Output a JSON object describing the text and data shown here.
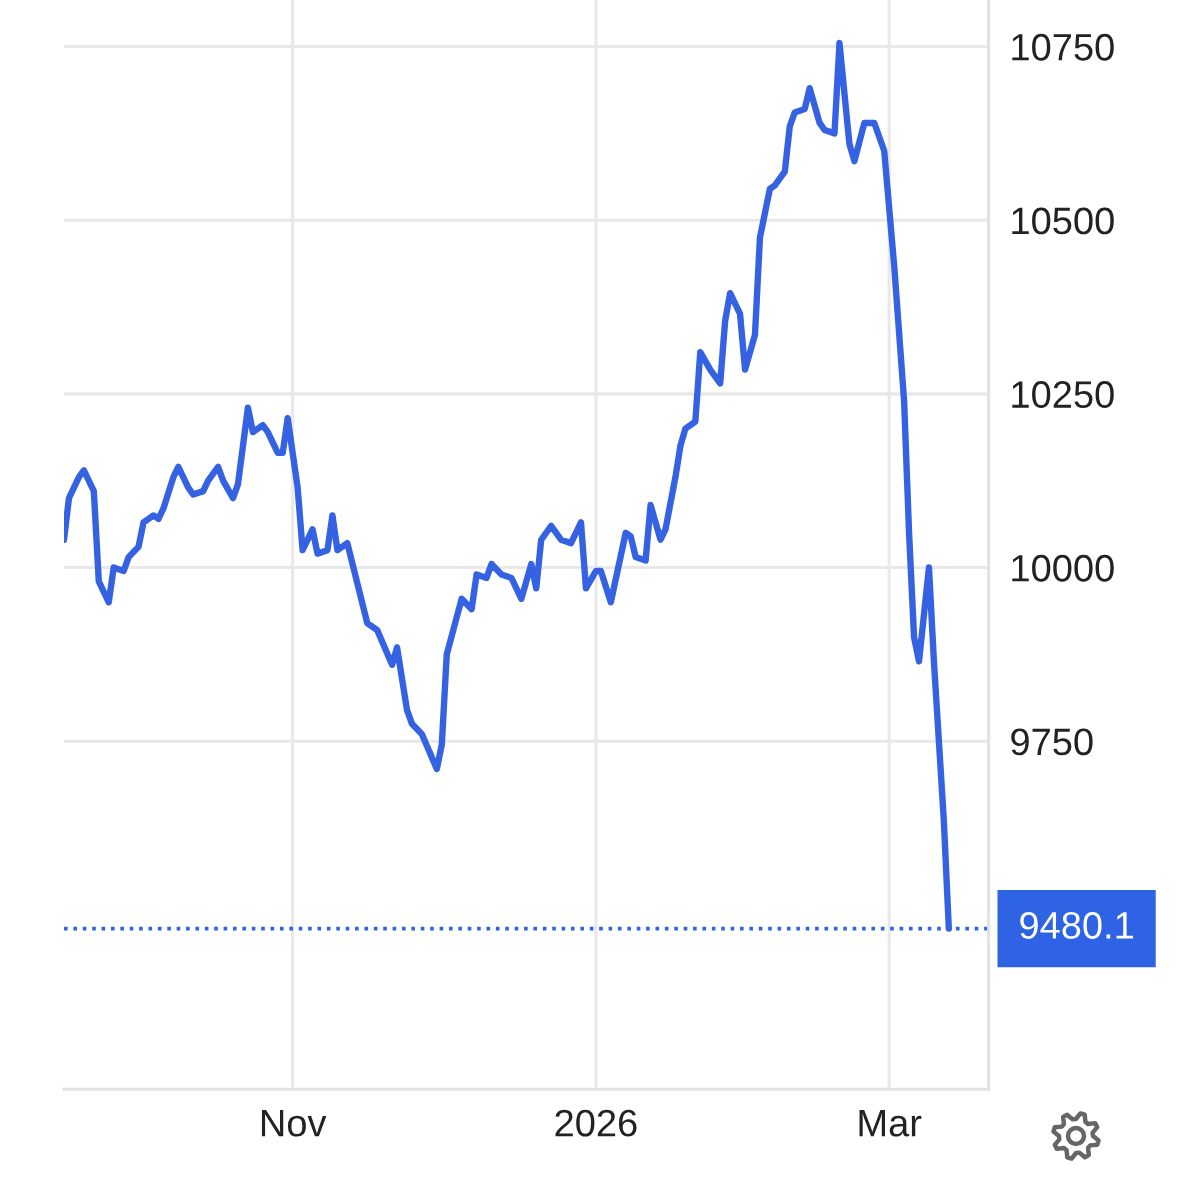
{
  "chart_data": {
    "type": "line",
    "x": [
      "2025-09-16",
      "2025-09-17",
      "2025-09-19",
      "2025-09-20",
      "2025-09-22",
      "2025-09-23",
      "2025-09-25",
      "2025-09-26",
      "2025-09-28",
      "2025-09-29",
      "2025-10-01",
      "2025-10-02",
      "2025-10-04",
      "2025-10-05",
      "2025-10-06",
      "2025-10-08",
      "2025-10-09",
      "2025-10-11",
      "2025-10-12",
      "2025-10-14",
      "2025-10-15",
      "2025-10-17",
      "2025-10-18",
      "2025-10-20",
      "2025-10-21",
      "2025-10-23",
      "2025-10-24",
      "2025-10-26",
      "2025-10-27",
      "2025-10-29",
      "2025-10-30",
      "2025-10-31",
      "2025-11-02",
      "2025-11-03",
      "2025-11-05",
      "2025-11-06",
      "2025-11-08",
      "2025-11-09",
      "2025-11-10",
      "2025-11-12",
      "2025-11-16",
      "2025-11-18",
      "2025-11-21",
      "2025-11-22",
      "2025-11-24",
      "2025-11-25",
      "2025-11-27",
      "2025-11-30",
      "2025-12-01",
      "2025-12-02",
      "2025-12-05",
      "2025-12-07",
      "2025-12-08",
      "2025-12-10",
      "2025-12-11",
      "2025-12-13",
      "2025-12-15",
      "2025-12-17",
      "2025-12-19",
      "2025-12-20",
      "2025-12-21",
      "2025-12-23",
      "2025-12-25",
      "2025-12-27",
      "2025-12-29",
      "2025-12-30",
      "2026-01-01",
      "2026-01-02",
      "2026-01-04",
      "2026-01-07",
      "2026-01-08",
      "2026-01-09",
      "2026-01-11",
      "2026-01-12",
      "2026-01-14",
      "2026-01-15",
      "2026-01-17",
      "2026-01-18",
      "2026-01-19",
      "2026-01-21",
      "2026-01-22",
      "2026-01-24",
      "2026-01-26",
      "2026-01-27",
      "2026-01-28",
      "2026-01-30",
      "2026-01-31",
      "2026-02-02",
      "2026-02-03",
      "2026-02-05",
      "2026-02-06",
      "2026-02-08",
      "2026-02-09",
      "2026-02-10",
      "2026-02-12",
      "2026-02-13",
      "2026-02-15",
      "2026-02-16",
      "2026-02-18",
      "2026-02-19",
      "2026-02-21",
      "2026-02-22",
      "2026-02-24",
      "2026-02-25",
      "2026-02-26",
      "2026-02-28",
      "2026-03-02",
      "2026-03-04",
      "2026-03-05",
      "2026-03-06",
      "2026-03-07",
      "2026-03-09",
      "2026-03-10",
      "2026-03-12",
      "2026-03-13"
    ],
    "series": [
      {
        "color": "#3462e2",
        "values": [
          10040,
          10100,
          10130,
          10140,
          10110,
          9980,
          9950,
          10000,
          9995,
          10015,
          10030,
          10065,
          10075,
          10070,
          10085,
          10130,
          10145,
          10115,
          10105,
          10110,
          10125,
          10145,
          10125,
          10100,
          10120,
          10230,
          10195,
          10205,
          10195,
          10165,
          10165,
          10215,
          10115,
          10025,
          10055,
          10020,
          10025,
          10075,
          10025,
          10035,
          9920,
          9910,
          9860,
          9885,
          9795,
          9775,
          9760,
          9710,
          9745,
          9875,
          9955,
          9940,
          9990,
          9985,
          10005,
          9990,
          9985,
          9955,
          10005,
          9970,
          10040,
          10060,
          10040,
          10035,
          10065,
          9970,
          9995,
          9995,
          9950,
          10050,
          10045,
          10015,
          10010,
          10090,
          10040,
          10055,
          10130,
          10175,
          10200,
          10210,
          10310,
          10285,
          10265,
          10355,
          10395,
          10365,
          10285,
          10335,
          10475,
          10545,
          10550,
          10570,
          10635,
          10655,
          10660,
          10690,
          10640,
          10630,
          10625,
          10755,
          10610,
          10585,
          10640,
          10640,
          10640,
          10600,
          10435,
          10240,
          10050,
          9900,
          9865,
          10000,
          9865,
          9635,
          9480.1
        ]
      }
    ],
    "xlim": [
      "2025-09-16",
      "2026-03-21"
    ],
    "xticks": [
      {
        "value": "2025-11-01",
        "label": "Nov"
      },
      {
        "value": "2026-01-01",
        "label": "2026"
      },
      {
        "value": "2026-03-01",
        "label": "Mar"
      }
    ],
    "ylim": [
      9249,
      10817
    ],
    "yticks": [
      9750,
      10000,
      10250,
      10500,
      10750
    ],
    "grid": true,
    "line_style": "solid",
    "ref_lines": [
      {
        "axis": "y",
        "value": 9480.1,
        "label": "9480.1",
        "color": "#2f63e6",
        "line_style": "dotted"
      }
    ]
  }
}
